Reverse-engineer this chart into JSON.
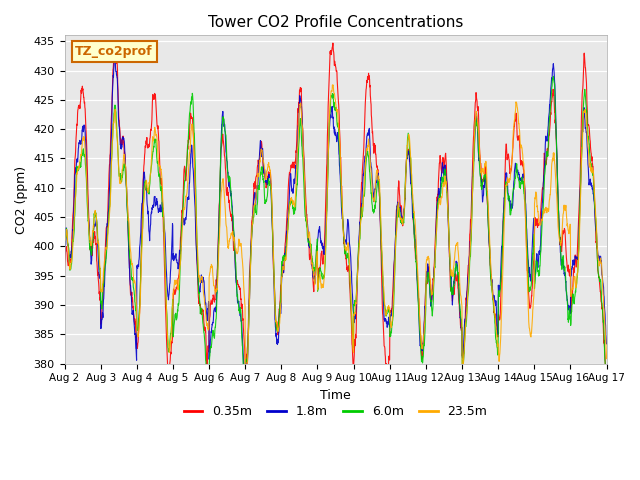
{
  "title": "Tower CO2 Profile Concentrations",
  "xlabel": "Time",
  "ylabel": "CO2 (ppm)",
  "ylim": [
    380,
    436
  ],
  "yticks": [
    380,
    385,
    390,
    395,
    400,
    405,
    410,
    415,
    420,
    425,
    430,
    435
  ],
  "series_labels": [
    "0.35m",
    "1.8m",
    "6.0m",
    "23.5m"
  ],
  "series_colors": [
    "#ff0000",
    "#0000cc",
    "#00cc00",
    "#ffaa00"
  ],
  "legend_label": "TZ_co2prof",
  "legend_label_color": "#cc6600",
  "legend_bg": "#ffffcc",
  "plot_bg": "#e8e8e8",
  "n_days": 15,
  "n_points_per_day": 144,
  "seed": 42,
  "figsize": [
    6.4,
    4.8
  ],
  "dpi": 100
}
